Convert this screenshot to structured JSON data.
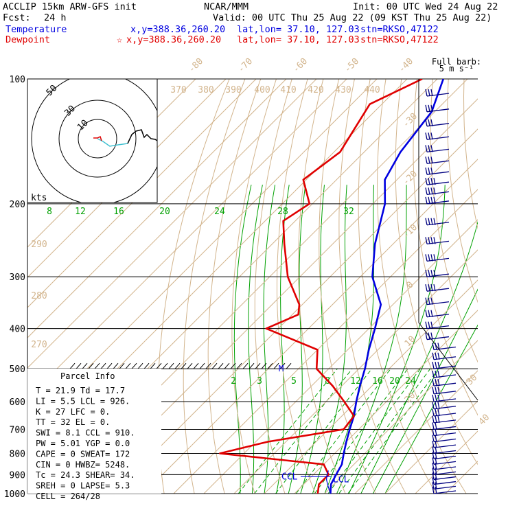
{
  "header": {
    "model": "ACCLIP 15km ARW-GFS init",
    "org": "NCAR/MMM",
    "init": "Init: 00 UTC Wed 24 Aug 22",
    "fcst_label": "Fcst:",
    "fcst_value": "24 h",
    "valid": "Valid: 00 UTC Thu 25 Aug 22 (09 KST Thu 25 Aug 22)",
    "temperature_label": "Temperature",
    "dewpoint_label": "Dewpoint",
    "marker_star": "☆",
    "xy": "x,y=388.36,260.20",
    "latlon": "lat,lon= 37.10, 127.03",
    "stn": "stn=RKSO,47122"
  },
  "colors": {
    "temperature": "#0000e0",
    "dewpoint": "#e00000",
    "isotherm": "#d2b48c",
    "mixing_ratio": "#00a000",
    "isobar": "#000000",
    "wind_barb": "#000080",
    "hodo_trace": "#40c0d0"
  },
  "chart_data": {
    "type": "line",
    "plot_kind": "skew-T log-p sounding",
    "y_scale": "log",
    "pressure_ticks": [
      100,
      200,
      300,
      400,
      500,
      600,
      700,
      800,
      900,
      1000
    ],
    "isotherm_labels": [
      "-80",
      "-70",
      "-60",
      "-50",
      "-40",
      "-30",
      "-20",
      "-10",
      "0",
      "10",
      "20",
      "30",
      "40"
    ],
    "theta_labels_top": [
      "370",
      "380",
      "390",
      "400",
      "410",
      "420",
      "430",
      "440"
    ],
    "theta_labels_side": [
      "290",
      "280",
      "270"
    ],
    "mixing_ratio_upper_labels": [
      "8",
      "12",
      "16",
      "20",
      "24",
      "28",
      "32"
    ],
    "mixing_ratio_lower_labels": [
      "2",
      "3",
      "5",
      "8",
      "12",
      "16",
      "20",
      "24"
    ],
    "wind_legend": [
      "Full barb:",
      "5 m s⁻¹"
    ],
    "series": [
      {
        "name": "Temperature",
        "values": [
          [
            100,
            -78
          ],
          [
            120,
            -71
          ],
          [
            150,
            -68
          ],
          [
            175,
            -64
          ],
          [
            200,
            -56
          ],
          [
            250,
            -46
          ],
          [
            300,
            -36
          ],
          [
            350,
            -24
          ],
          [
            400,
            -18
          ],
          [
            450,
            -13
          ],
          [
            500,
            -8
          ],
          [
            550,
            -4
          ],
          [
            600,
            0
          ],
          [
            650,
            4
          ],
          [
            700,
            7
          ],
          [
            750,
            10
          ],
          [
            800,
            13
          ],
          [
            850,
            16
          ],
          [
            900,
            17.5
          ],
          [
            950,
            19
          ],
          [
            1000,
            21.9
          ]
        ]
      },
      {
        "name": "Dewpoint",
        "values": [
          [
            100,
            -85
          ],
          [
            115,
            -94
          ],
          [
            150,
            -88
          ],
          [
            175,
            -91
          ],
          [
            200,
            -81
          ],
          [
            220,
            -84
          ],
          [
            250,
            -76
          ],
          [
            300,
            -64
          ],
          [
            350,
            -51
          ],
          [
            370,
            -48
          ],
          [
            400,
            -54
          ],
          [
            450,
            -30
          ],
          [
            500,
            -24
          ],
          [
            550,
            -13
          ],
          [
            600,
            -4
          ],
          [
            650,
            4
          ],
          [
            700,
            5
          ],
          [
            750,
            -16
          ],
          [
            800,
            -28
          ],
          [
            850,
            10
          ],
          [
            900,
            15
          ],
          [
            950,
            15
          ],
          [
            1000,
            17.7
          ]
        ]
      }
    ],
    "annotations": [
      "CCL",
      "LCL",
      "M"
    ]
  },
  "parcel": {
    "title": "Parcel Info",
    "rows": [
      "T   =   21.9  Td =  17.7",
      "LI  =    5.5  LCL =  926.",
      "K   =     27  LFC =    0.",
      "TT  =     32  EL  =    0.",
      "SWI =    8.1  CCL =  910.",
      "PW  =   5.01  YGP =   0.0",
      "CAPE =     0  SWEAT=  172",
      "CIN  =     0  HWBZ= 5248.",
      "Tc  =   24.3  SHEAR=  34.",
      "SREH =     0  LAPSE=  5.3",
      "CELL = 264/28"
    ]
  },
  "hodograph": {
    "unit": "kts",
    "ring_labels": [
      "10",
      "30",
      "50"
    ]
  }
}
